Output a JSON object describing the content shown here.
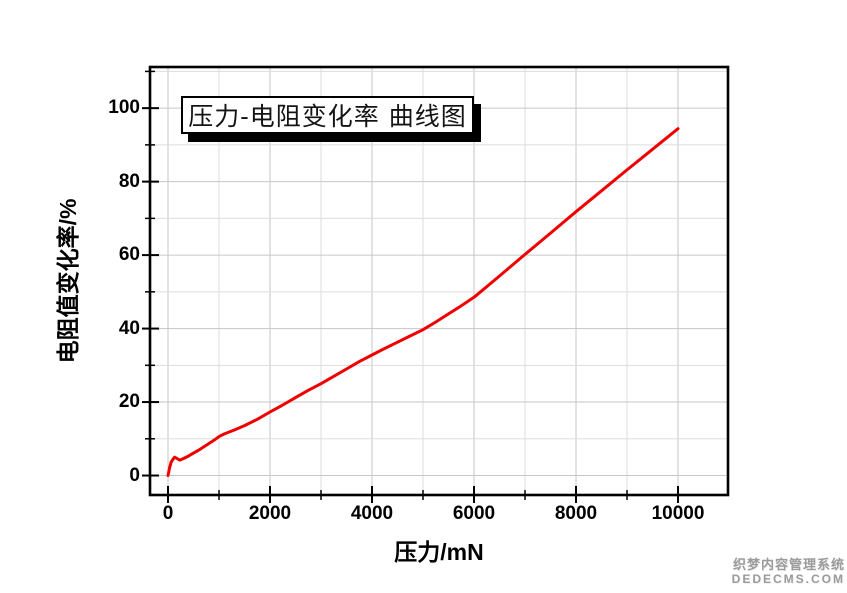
{
  "page": {
    "background": "#ffffff"
  },
  "watermark": {
    "line1": "织梦内容管理系统",
    "line2": "DEDECMS.COM",
    "color": "#9b9b9b"
  },
  "chart_data": {
    "type": "line",
    "title": "压力-电阻变化率 曲线图",
    "xlabel": "压力/mN",
    "ylabel": "电阻值变化率/%",
    "x_ticks": [
      0,
      2000,
      4000,
      6000,
      8000,
      10000
    ],
    "y_ticks": [
      0,
      20,
      40,
      60,
      80,
      100
    ],
    "x_minor_step": 1000,
    "y_minor_step": 10,
    "x_grid_max": 10000,
    "y_grid_max": 110,
    "xlim": [
      -353,
      10980
    ],
    "ylim": [
      -5.3,
      111.2
    ],
    "grid": "on",
    "legend": "none",
    "colors": {
      "line": "#ee0000",
      "frame": "#000000",
      "grid_major": "#c6c6c6",
      "grid_minor": "#dddddd"
    },
    "series": [
      {
        "name": "压力-电阻变化率",
        "points": [
          [
            0,
            0
          ],
          [
            30,
            2
          ],
          [
            60,
            3.6
          ],
          [
            100,
            4.5
          ],
          [
            130,
            5.0
          ],
          [
            180,
            4.6
          ],
          [
            230,
            4.2
          ],
          [
            300,
            4.6
          ],
          [
            400,
            5.3
          ],
          [
            500,
            6.1
          ],
          [
            600,
            6.9
          ],
          [
            700,
            7.8
          ],
          [
            800,
            8.7
          ],
          [
            900,
            9.6
          ],
          [
            1000,
            10.6
          ],
          [
            1100,
            11.3
          ],
          [
            1300,
            12.4
          ],
          [
            1500,
            13.6
          ],
          [
            1750,
            15.3
          ],
          [
            2000,
            17.3
          ],
          [
            2250,
            19.2
          ],
          [
            2500,
            21.2
          ],
          [
            2750,
            23.2
          ],
          [
            3000,
            25.0
          ],
          [
            3250,
            27.0
          ],
          [
            3500,
            29.0
          ],
          [
            3750,
            31.0
          ],
          [
            4000,
            32.8
          ],
          [
            4250,
            34.6
          ],
          [
            4500,
            36.3
          ],
          [
            4750,
            38.0
          ],
          [
            5000,
            39.7
          ],
          [
            5250,
            41.8
          ],
          [
            5500,
            44.0
          ],
          [
            5750,
            46.2
          ],
          [
            6000,
            48.5
          ],
          [
            6500,
            54.3
          ],
          [
            7000,
            60.2
          ],
          [
            7500,
            66.0
          ],
          [
            8000,
            71.8
          ],
          [
            8500,
            77.5
          ],
          [
            9000,
            83.2
          ],
          [
            9500,
            88.8
          ],
          [
            10000,
            94.4
          ]
        ]
      }
    ]
  }
}
